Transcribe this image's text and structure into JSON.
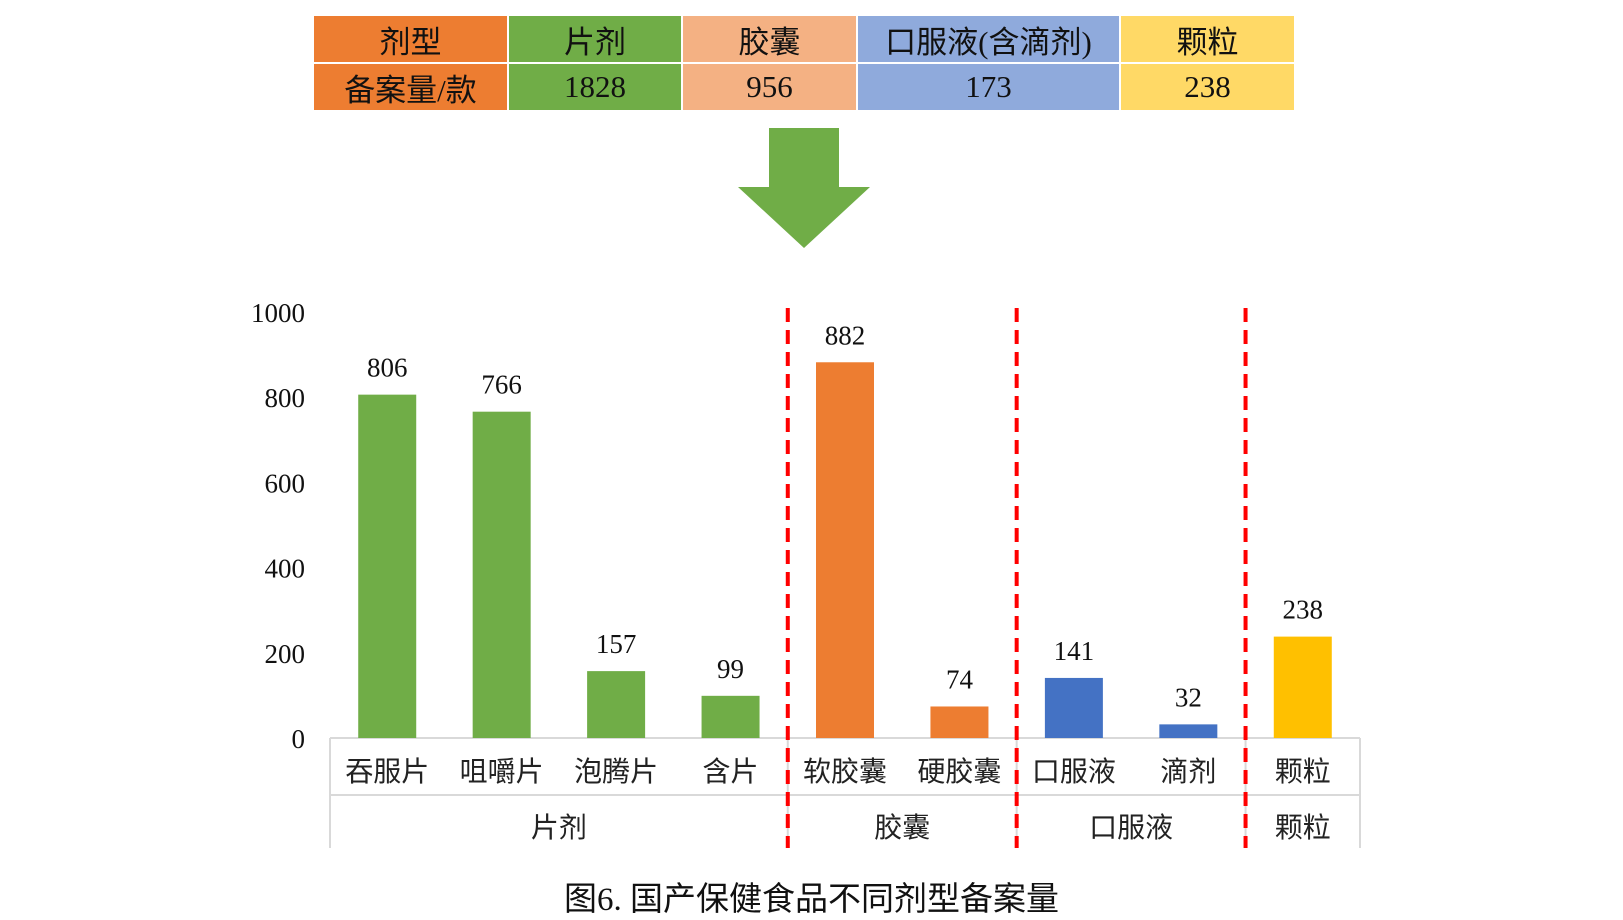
{
  "table": {
    "header_label": "剂型",
    "value_label": "备案量/款",
    "columns": [
      {
        "name": "片剂",
        "value": "1828",
        "color": "#70AD47"
      },
      {
        "name": "胶囊",
        "value": "956",
        "color": "#F4B183"
      },
      {
        "name": "口服液(含滴剂)",
        "value": "173",
        "color": "#8FAADC"
      },
      {
        "name": "颗粒",
        "value": "238",
        "color": "#FFD966"
      }
    ],
    "label_color": "#ED7D31"
  },
  "arrow": {
    "icon": "down-arrow-icon",
    "color": "#70AD47"
  },
  "chart_data": {
    "type": "bar",
    "ylim": [
      0,
      1000
    ],
    "yticks": [
      0,
      200,
      400,
      600,
      800,
      1000
    ],
    "bars": [
      {
        "label": "吞服片",
        "value": 806,
        "group": "片剂",
        "color": "#70AD47"
      },
      {
        "label": "咀嚼片",
        "value": 766,
        "group": "片剂",
        "color": "#70AD47"
      },
      {
        "label": "泡腾片",
        "value": 157,
        "group": "片剂",
        "color": "#70AD47"
      },
      {
        "label": "含片",
        "value": 99,
        "group": "片剂",
        "color": "#70AD47"
      },
      {
        "label": "软胶囊",
        "value": 882,
        "group": "胶囊",
        "color": "#ED7D31"
      },
      {
        "label": "硬胶囊",
        "value": 74,
        "group": "胶囊",
        "color": "#ED7D31"
      },
      {
        "label": "口服液",
        "value": 141,
        "group": "口服液",
        "color": "#4472C4"
      },
      {
        "label": "滴剂",
        "value": 32,
        "group": "口服液",
        "color": "#4472C4"
      },
      {
        "label": "颗粒",
        "value": 238,
        "group": "颗粒",
        "color": "#FFC000"
      }
    ],
    "groups": [
      {
        "label": "片剂",
        "count": 4
      },
      {
        "label": "胶囊",
        "count": 2
      },
      {
        "label": "口服液",
        "count": 2
      },
      {
        "label": "颗粒",
        "count": 1
      }
    ],
    "separator_color": "#FF0000"
  },
  "caption": "图6. 国产保健食品不同剂型备案量"
}
